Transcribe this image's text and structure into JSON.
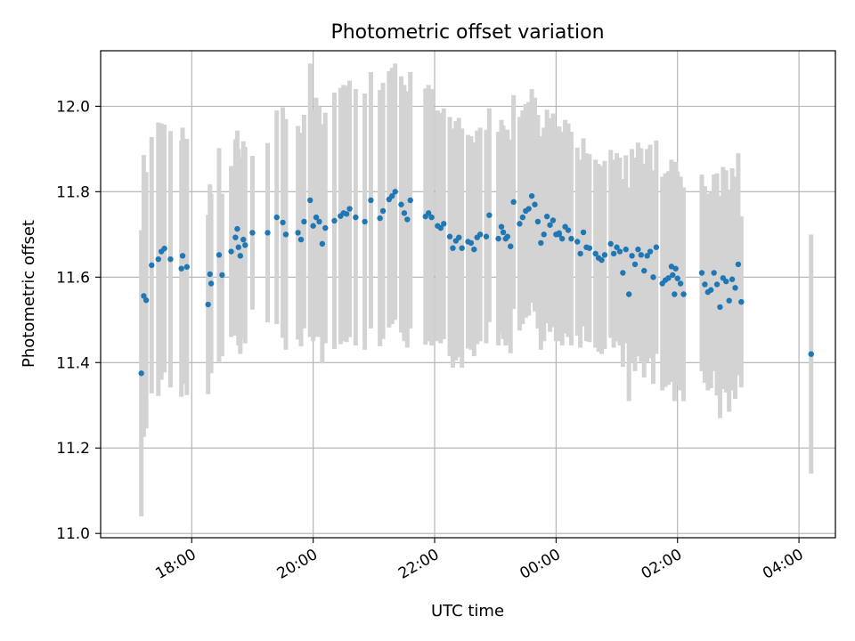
{
  "chart_data": {
    "type": "scatter",
    "title": "Photometric offset variation",
    "xlabel": "UTC time",
    "ylabel": "Photometric offset",
    "x_unit": "UTC hours since 00:00 (negative = previous day)",
    "xlim": [
      -7.5,
      4.6
    ],
    "ylim": [
      10.99,
      12.13
    ],
    "grid": true,
    "x_ticks": [
      {
        "value": -6,
        "label": "18:00"
      },
      {
        "value": -4,
        "label": "20:00"
      },
      {
        "value": -2,
        "label": "22:00"
      },
      {
        "value": 0,
        "label": "00:00"
      },
      {
        "value": 2,
        "label": "02:00"
      },
      {
        "value": 4,
        "label": "04:00"
      }
    ],
    "y_ticks": [
      {
        "value": 11.0,
        "label": "11.0"
      },
      {
        "value": 11.2,
        "label": "11.2"
      },
      {
        "value": 11.4,
        "label": "11.4"
      },
      {
        "value": 11.6,
        "label": "11.6"
      },
      {
        "value": 11.8,
        "label": "11.8"
      },
      {
        "value": 12.0,
        "label": "12.0"
      }
    ],
    "point_color": "#1f77b4",
    "errorbar_color": "#d3d3d3",
    "series": [
      {
        "points": [
          [
            -6.83,
            11.375,
            0.335
          ],
          [
            -6.79,
            11.556,
            0.33
          ],
          [
            -6.75,
            11.546,
            0.3
          ],
          [
            -6.66,
            11.628,
            0.3
          ],
          [
            -6.55,
            11.642,
            0.32
          ],
          [
            -6.5,
            11.66,
            0.3
          ],
          [
            -6.45,
            11.667,
            0.29
          ],
          [
            -6.35,
            11.642,
            0.3
          ],
          [
            -6.17,
            11.62,
            0.3
          ],
          [
            -6.15,
            11.65,
            0.3
          ],
          [
            -6.08,
            11.624,
            0.3
          ],
          [
            -5.73,
            11.536,
            0.21
          ],
          [
            -5.7,
            11.607,
            0.21
          ],
          [
            -5.68,
            11.585,
            0.21
          ],
          [
            -5.55,
            11.652,
            0.25
          ],
          [
            -5.5,
            11.605,
            0.19
          ],
          [
            -5.35,
            11.66,
            0.2
          ],
          [
            -5.28,
            11.693,
            0.23
          ],
          [
            -5.25,
            11.713,
            0.23
          ],
          [
            -5.23,
            11.67,
            0.23
          ],
          [
            -5.2,
            11.65,
            0.23
          ],
          [
            -5.15,
            11.688,
            0.23
          ],
          [
            -5.12,
            11.675,
            0.23
          ],
          [
            -5.0,
            11.704,
            0.18
          ],
          [
            -4.75,
            11.704,
            0.21
          ],
          [
            -4.6,
            11.74,
            0.25
          ],
          [
            -4.5,
            11.728,
            0.27
          ],
          [
            -4.45,
            11.7,
            0.27
          ],
          [
            -4.25,
            11.704,
            0.25
          ],
          [
            -4.2,
            11.688,
            0.25
          ],
          [
            -4.15,
            11.73,
            0.25
          ],
          [
            -4.05,
            11.78,
            0.32
          ],
          [
            -4.0,
            11.72,
            0.27
          ],
          [
            -3.95,
            11.74,
            0.28
          ],
          [
            -3.9,
            11.73,
            0.27
          ],
          [
            -3.85,
            11.678,
            0.28
          ],
          [
            -3.8,
            11.715,
            0.27
          ],
          [
            -3.65,
            11.732,
            0.3
          ],
          [
            -3.55,
            11.743,
            0.3
          ],
          [
            -3.5,
            11.75,
            0.3
          ],
          [
            -3.45,
            11.748,
            0.3
          ],
          [
            -3.4,
            11.76,
            0.3
          ],
          [
            -3.3,
            11.74,
            0.3
          ],
          [
            -3.15,
            11.73,
            0.3
          ],
          [
            -3.05,
            11.78,
            0.3
          ],
          [
            -2.9,
            11.738,
            0.3
          ],
          [
            -2.85,
            11.755,
            0.3
          ],
          [
            -2.75,
            11.782,
            0.3
          ],
          [
            -2.7,
            11.79,
            0.3
          ],
          [
            -2.65,
            11.8,
            0.3
          ],
          [
            -2.55,
            11.77,
            0.3
          ],
          [
            -2.5,
            11.75,
            0.3
          ],
          [
            -2.45,
            11.735,
            0.3
          ],
          [
            -2.4,
            11.78,
            0.3
          ],
          [
            -2.15,
            11.742,
            0.3
          ],
          [
            -2.1,
            11.75,
            0.3
          ],
          [
            -2.05,
            11.74,
            0.3
          ],
          [
            -1.95,
            11.72,
            0.27
          ],
          [
            -1.9,
            11.715,
            0.27
          ],
          [
            -1.85,
            11.725,
            0.27
          ],
          [
            -1.75,
            11.695,
            0.28
          ],
          [
            -1.7,
            11.668,
            0.28
          ],
          [
            -1.65,
            11.685,
            0.28
          ],
          [
            -1.6,
            11.693,
            0.28
          ],
          [
            -1.55,
            11.668,
            0.28
          ],
          [
            -1.45,
            11.683,
            0.25
          ],
          [
            -1.4,
            11.68,
            0.25
          ],
          [
            -1.35,
            11.665,
            0.25
          ],
          [
            -1.3,
            11.693,
            0.25
          ],
          [
            -1.25,
            11.7,
            0.25
          ],
          [
            -1.15,
            11.695,
            0.25
          ],
          [
            -1.1,
            11.745,
            0.25
          ],
          [
            -0.95,
            11.69,
            0.25
          ],
          [
            -0.9,
            11.718,
            0.25
          ],
          [
            -0.87,
            11.705,
            0.25
          ],
          [
            -0.83,
            11.69,
            0.25
          ],
          [
            -0.8,
            11.695,
            0.25
          ],
          [
            -0.75,
            11.672,
            0.25
          ],
          [
            -0.7,
            11.776,
            0.25
          ],
          [
            -0.6,
            11.725,
            0.25
          ],
          [
            -0.55,
            11.74,
            0.25
          ],
          [
            -0.5,
            11.755,
            0.25
          ],
          [
            -0.45,
            11.76,
            0.25
          ],
          [
            -0.4,
            11.79,
            0.25
          ],
          [
            -0.35,
            11.77,
            0.25
          ],
          [
            -0.3,
            11.73,
            0.25
          ],
          [
            -0.25,
            11.68,
            0.25
          ],
          [
            -0.15,
            11.742,
            0.25
          ],
          [
            -0.1,
            11.722,
            0.25
          ],
          [
            0.0,
            11.7,
            0.25
          ],
          [
            0.05,
            11.7,
            0.25
          ],
          [
            -0.2,
            11.7,
            0.25
          ],
          [
            -0.05,
            11.733,
            0.25
          ],
          [
            0.05,
            11.703,
            0.25
          ],
          [
            0.1,
            11.69,
            0.25
          ],
          [
            0.15,
            11.718,
            0.25
          ],
          [
            0.2,
            11.71,
            0.25
          ],
          [
            0.25,
            11.69,
            0.25
          ],
          [
            0.35,
            11.683,
            0.22
          ],
          [
            0.4,
            11.655,
            0.22
          ],
          [
            0.45,
            11.705,
            0.22
          ],
          [
            0.5,
            11.67,
            0.22
          ],
          [
            0.55,
            11.668,
            0.22
          ],
          [
            0.65,
            11.655,
            0.22
          ],
          [
            0.7,
            11.645,
            0.22
          ],
          [
            0.75,
            11.64,
            0.22
          ],
          [
            0.8,
            11.652,
            0.22
          ],
          [
            0.9,
            11.678,
            0.22
          ],
          [
            0.95,
            11.655,
            0.22
          ],
          [
            1.0,
            11.67,
            0.22
          ],
          [
            1.05,
            11.66,
            0.22
          ],
          [
            1.1,
            11.61,
            0.22
          ],
          [
            1.15,
            11.665,
            0.22
          ],
          [
            1.2,
            11.56,
            0.25
          ],
          [
            1.25,
            11.65,
            0.25
          ],
          [
            1.3,
            11.63,
            0.25
          ],
          [
            1.35,
            11.665,
            0.25
          ],
          [
            1.4,
            11.652,
            0.25
          ],
          [
            1.45,
            11.615,
            0.25
          ],
          [
            1.5,
            11.65,
            0.25
          ],
          [
            1.55,
            11.66,
            0.25
          ],
          [
            1.6,
            11.6,
            0.25
          ],
          [
            1.65,
            11.67,
            0.25
          ],
          [
            1.75,
            11.585,
            0.25
          ],
          [
            1.8,
            11.593,
            0.25
          ],
          [
            1.85,
            11.598,
            0.25
          ],
          [
            1.9,
            11.625,
            0.25
          ],
          [
            1.92,
            11.605,
            0.25
          ],
          [
            1.95,
            11.56,
            0.25
          ],
          [
            1.97,
            11.62,
            0.25
          ],
          [
            2.0,
            11.597,
            0.25
          ],
          [
            2.05,
            11.585,
            0.25
          ],
          [
            2.1,
            11.56,
            0.25
          ],
          [
            2.4,
            11.61,
            0.23
          ],
          [
            2.45,
            11.583,
            0.23
          ],
          [
            2.5,
            11.565,
            0.23
          ],
          [
            2.55,
            11.57,
            0.23
          ],
          [
            2.6,
            11.61,
            0.23
          ],
          [
            2.65,
            11.583,
            0.26
          ],
          [
            2.7,
            11.53,
            0.26
          ],
          [
            2.75,
            11.598,
            0.26
          ],
          [
            2.8,
            11.59,
            0.26
          ],
          [
            2.85,
            11.545,
            0.26
          ],
          [
            2.9,
            11.595,
            0.26
          ],
          [
            2.95,
            11.575,
            0.26
          ],
          [
            3.0,
            11.63,
            0.26
          ],
          [
            3.05,
            11.542,
            0.2
          ],
          [
            4.2,
            11.42,
            0.28
          ]
        ]
      }
    ]
  }
}
